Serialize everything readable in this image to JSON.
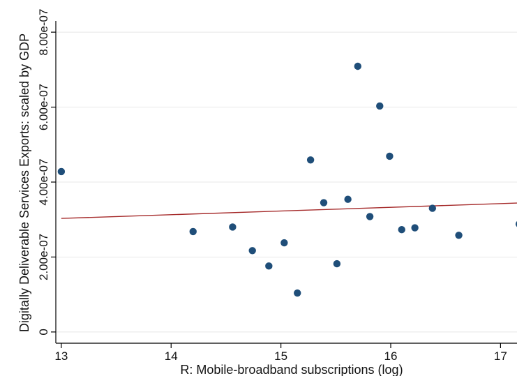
{
  "chart_data": {
    "type": "scatter",
    "xlabel": "R: Mobile-broadband subscriptions (log)",
    "ylabel": "Digitally Deliverable Services Exports: scaled by GDP",
    "xlim": [
      12.95,
      17.15
    ],
    "ylim": [
      -3e-08,
      8.3e-07
    ],
    "xticks": [
      13,
      14,
      15,
      16,
      17
    ],
    "xtick_labels": [
      "13",
      "14",
      "15",
      "16",
      "17"
    ],
    "yticks": [
      0,
      2e-07,
      4e-07,
      6e-07,
      8e-07
    ],
    "ytick_labels": [
      "0",
      "2.00e-07",
      "4.00e-07",
      "6.00e-07",
      "8.00e-07"
    ],
    "grid": "horizontal",
    "colors": {
      "points": "#1f4e79",
      "fit_line": "#a52a2a",
      "grid": "#e8e8e8",
      "axis": "#000000"
    },
    "points": [
      {
        "x": 13.0,
        "y": 4.28e-07
      },
      {
        "x": 14.2,
        "y": 2.68e-07
      },
      {
        "x": 14.56,
        "y": 2.8e-07
      },
      {
        "x": 14.74,
        "y": 2.17e-07
      },
      {
        "x": 14.89,
        "y": 1.76e-07
      },
      {
        "x": 15.03,
        "y": 2.38e-07
      },
      {
        "x": 15.15,
        "y": 1.04e-07
      },
      {
        "x": 15.27,
        "y": 4.59e-07
      },
      {
        "x": 15.39,
        "y": 3.45e-07
      },
      {
        "x": 15.51,
        "y": 1.82e-07
      },
      {
        "x": 15.61,
        "y": 3.54e-07
      },
      {
        "x": 15.7,
        "y": 7.09e-07
      },
      {
        "x": 15.81,
        "y": 3.08e-07
      },
      {
        "x": 15.9,
        "y": 6.03e-07
      },
      {
        "x": 15.99,
        "y": 4.69e-07
      },
      {
        "x": 16.1,
        "y": 2.73e-07
      },
      {
        "x": 16.22,
        "y": 2.78e-07
      },
      {
        "x": 16.38,
        "y": 3.3e-07
      },
      {
        "x": 16.62,
        "y": 2.58e-07
      },
      {
        "x": 17.17,
        "y": 2.88e-07
      }
    ],
    "fit_line": {
      "x": [
        13.0,
        17.15
      ],
      "y": [
        3.03e-07,
        3.44e-07
      ]
    }
  }
}
